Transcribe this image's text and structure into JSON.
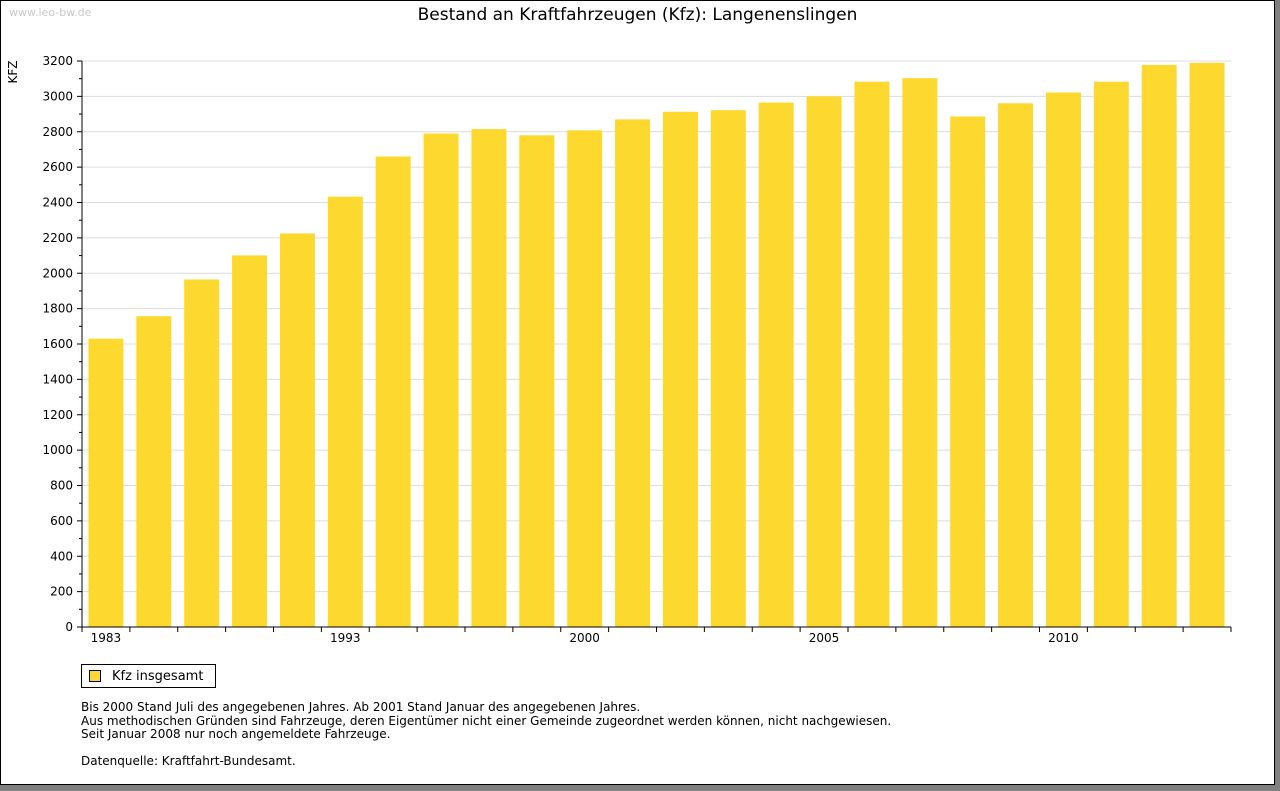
{
  "watermark": "www.leo-bw.de",
  "colors": {
    "bar": "#fdd82f",
    "grid": "#dcdcdc",
    "axis": "#000000"
  },
  "notes": [
    "Bis 2000 Stand Juli des angegebenen Jahres. Ab 2001 Stand Januar des angegebenen Jahres.",
    "Aus methodischen Gründen sind Fahrzeuge, deren Eigentümer nicht einer Gemeinde zugeordnet werden können, nicht nachgewiesen.",
    "Seit Januar 2008 nur noch angemeldete Fahrzeuge."
  ],
  "source": "Datenquelle: Kraftfahrt-Bundesamt.",
  "chart_data": {
    "type": "bar",
    "title": "Bestand an Kraftfahrzeugen (Kfz): Langenenslingen",
    "ylabel": "KFZ",
    "xlabel": "",
    "ylim": [
      0,
      3200
    ],
    "yticks": [
      0,
      200,
      400,
      600,
      800,
      1000,
      1200,
      1400,
      1600,
      1800,
      2000,
      2200,
      2400,
      2600,
      2800,
      3000,
      3200
    ],
    "grid": true,
    "legend_position": "bottom-left",
    "categories": [
      "1983",
      "",
      "",
      "",
      "",
      "1993",
      "",
      "",
      "",
      "",
      "2000",
      "",
      "",
      "",
      "",
      "2005",
      "",
      "",
      "",
      "",
      "2010",
      "",
      "",
      ""
    ],
    "series": [
      {
        "name": "Kfz insgesamt",
        "values": [
          1630,
          1757,
          1965,
          2101,
          2225,
          2433,
          2660,
          2790,
          2815,
          2780,
          2808,
          2870,
          2913,
          2922,
          2965,
          3000,
          3083,
          3103,
          2886,
          2961,
          3022,
          3083,
          3178,
          3190
        ]
      }
    ]
  }
}
